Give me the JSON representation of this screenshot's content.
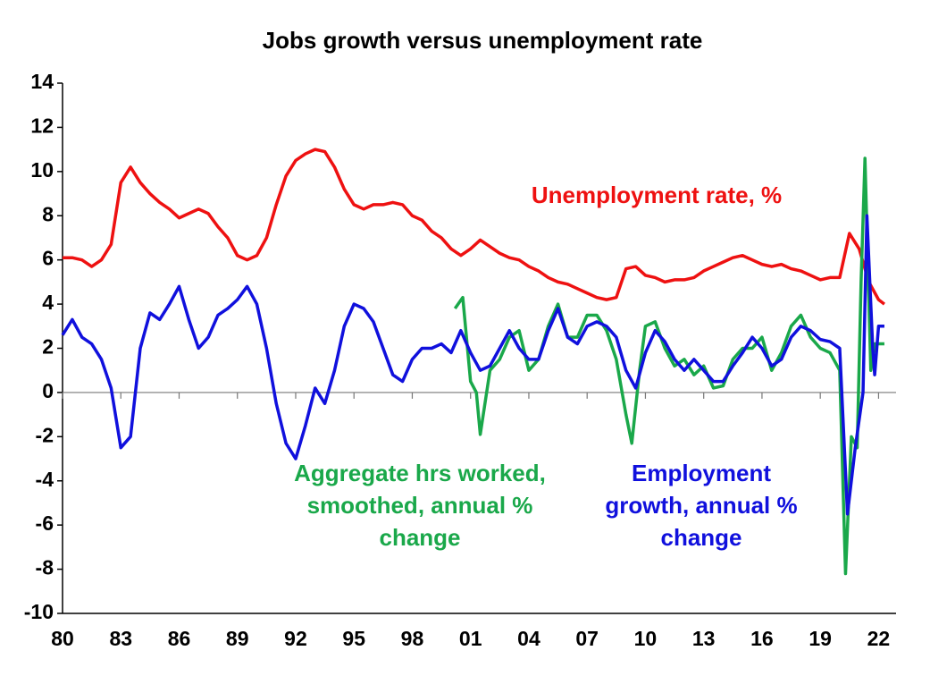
{
  "chart_data": {
    "type": "line",
    "title": "Jobs growth versus unemployment rate",
    "xlim": [
      1980,
      2022.9
    ],
    "ylim": [
      -10,
      14
    ],
    "yticks": [
      -10,
      -8,
      -6,
      -4,
      -2,
      0,
      2,
      4,
      6,
      8,
      10,
      12,
      14
    ],
    "xticks": [
      {
        "value": 1980,
        "label": "80"
      },
      {
        "value": 1983,
        "label": "83"
      },
      {
        "value": 1986,
        "label": "86"
      },
      {
        "value": 1989,
        "label": "89"
      },
      {
        "value": 1992,
        "label": "92"
      },
      {
        "value": 1995,
        "label": "95"
      },
      {
        "value": 1998,
        "label": "98"
      },
      {
        "value": 2001,
        "label": "01"
      },
      {
        "value": 2004,
        "label": "04"
      },
      {
        "value": 2007,
        "label": "07"
      },
      {
        "value": 2010,
        "label": "10"
      },
      {
        "value": 2013,
        "label": "13"
      },
      {
        "value": 2016,
        "label": "16"
      },
      {
        "value": 2019,
        "label": "19"
      },
      {
        "value": 2022,
        "label": "22"
      }
    ],
    "series": [
      {
        "name": "Unemployment rate, %",
        "color": "#ee1111",
        "x": [
          1980,
          1980.5,
          1981,
          1981.5,
          1982,
          1982.5,
          1983,
          1983.5,
          1984,
          1984.5,
          1985,
          1985.5,
          1986,
          1986.5,
          1987,
          1987.5,
          1988,
          1988.5,
          1989,
          1989.5,
          1990,
          1990.5,
          1991,
          1991.5,
          1992,
          1992.5,
          1993,
          1993.5,
          1994,
          1994.5,
          1995,
          1995.5,
          1996,
          1996.5,
          1997,
          1997.5,
          1998,
          1998.5,
          1999,
          1999.5,
          2000,
          2000.5,
          2001,
          2001.5,
          2002,
          2002.5,
          2003,
          2003.5,
          2004,
          2004.5,
          2005,
          2005.5,
          2006,
          2006.5,
          2007,
          2007.5,
          2008,
          2008.5,
          2009,
          2009.5,
          2010,
          2010.5,
          2011,
          2011.5,
          2012,
          2012.5,
          2013,
          2013.5,
          2014,
          2014.5,
          2015,
          2015.5,
          2016,
          2016.5,
          2017,
          2017.5,
          2018,
          2018.5,
          2019,
          2019.5,
          2020,
          2020.5,
          2021,
          2021.5,
          2022,
          2022.3
        ],
        "values": [
          6.1,
          6.1,
          6.0,
          5.7,
          6.0,
          6.7,
          9.5,
          10.2,
          9.5,
          9.0,
          8.6,
          8.3,
          7.9,
          8.1,
          8.3,
          8.1,
          7.5,
          7.0,
          6.2,
          6.0,
          6.2,
          7.0,
          8.5,
          9.8,
          10.5,
          10.8,
          11.0,
          10.9,
          10.2,
          9.2,
          8.5,
          8.3,
          8.5,
          8.5,
          8.6,
          8.5,
          8.0,
          7.8,
          7.3,
          7.0,
          6.5,
          6.2,
          6.5,
          6.9,
          6.6,
          6.3,
          6.1,
          6.0,
          5.7,
          5.5,
          5.2,
          5.0,
          4.9,
          4.7,
          4.5,
          4.3,
          4.2,
          4.3,
          5.6,
          5.7,
          5.3,
          5.2,
          5.0,
          5.1,
          5.1,
          5.2,
          5.5,
          5.7,
          5.9,
          6.1,
          6.2,
          6.0,
          5.8,
          5.7,
          5.8,
          5.6,
          5.5,
          5.3,
          5.1,
          5.2,
          5.2,
          7.2,
          6.5,
          5.0,
          4.2,
          4.0
        ]
      },
      {
        "name": "Aggregate hrs worked, smoothed, annual % change",
        "color": "#1aa84a",
        "x": [
          2000.2,
          2000.6,
          2001,
          2001.3,
          2001.5,
          2002,
          2002.5,
          2003,
          2003.5,
          2004,
          2004.5,
          2005,
          2005.5,
          2006,
          2006.5,
          2007,
          2007.5,
          2008,
          2008.5,
          2009,
          2009.3,
          2009.7,
          2010,
          2010.5,
          2011,
          2011.5,
          2012,
          2012.5,
          2013,
          2013.5,
          2014,
          2014.5,
          2015,
          2015.5,
          2016,
          2016.5,
          2017,
          2017.5,
          2018,
          2018.5,
          2019,
          2019.5,
          2020,
          2020.3,
          2020.6,
          2020.9,
          2021.1,
          2021.3,
          2021.6,
          2021.8,
          2022.3
        ],
        "values": [
          3.8,
          4.3,
          0.5,
          0.0,
          -1.9,
          1.0,
          1.5,
          2.5,
          2.8,
          1.0,
          1.5,
          3.0,
          4.0,
          2.5,
          2.5,
          3.5,
          3.5,
          2.8,
          1.5,
          -1.0,
          -2.3,
          1.0,
          3.0,
          3.2,
          2.0,
          1.2,
          1.5,
          0.8,
          1.2,
          0.2,
          0.3,
          1.5,
          2.0,
          2.0,
          2.5,
          1.0,
          1.8,
          3.0,
          3.5,
          2.5,
          2.0,
          1.8,
          1.0,
          -8.2,
          -2.0,
          -2.5,
          5.0,
          10.6,
          1.0,
          2.2,
          2.2
        ]
      },
      {
        "name": "Employment growth, annual % change",
        "color": "#1010dd",
        "x": [
          1980,
          1980.5,
          1981,
          1981.5,
          1982,
          1982.5,
          1983,
          1983.5,
          1984,
          1984.5,
          1985,
          1985.5,
          1986,
          1986.5,
          1987,
          1987.5,
          1988,
          1988.5,
          1989,
          1989.5,
          1990,
          1990.5,
          1991,
          1991.5,
          1992,
          1992.5,
          1993,
          1993.5,
          1994,
          1994.5,
          1995,
          1995.5,
          1996,
          1996.5,
          1997,
          1997.5,
          1998,
          1998.5,
          1999,
          1999.5,
          2000,
          2000.5,
          2001,
          2001.5,
          2002,
          2002.5,
          2003,
          2003.5,
          2004,
          2004.5,
          2005,
          2005.5,
          2006,
          2006.5,
          2007,
          2007.5,
          2008,
          2008.5,
          2009,
          2009.5,
          2010,
          2010.5,
          2011,
          2011.5,
          2012,
          2012.5,
          2013,
          2013.5,
          2014,
          2014.5,
          2015,
          2015.5,
          2016,
          2016.5,
          2017,
          2017.5,
          2018,
          2018.5,
          2019,
          2019.5,
          2020,
          2020.4,
          2020.8,
          2021.2,
          2021.4,
          2021.7,
          2021.8,
          2022,
          2022.3
        ],
        "values": [
          2.6,
          3.3,
          2.5,
          2.2,
          1.5,
          0.2,
          -2.5,
          -2.0,
          2.0,
          3.6,
          3.3,
          4.0,
          4.8,
          3.3,
          2.0,
          2.5,
          3.5,
          3.8,
          4.2,
          4.8,
          4.0,
          2.0,
          -0.5,
          -2.3,
          -3.0,
          -1.5,
          0.2,
          -0.5,
          1.0,
          3.0,
          4.0,
          3.8,
          3.2,
          2.0,
          0.8,
          0.5,
          1.5,
          2.0,
          2.0,
          2.2,
          1.8,
          2.8,
          1.8,
          1.0,
          1.2,
          2.0,
          2.8,
          2.0,
          1.5,
          1.5,
          2.8,
          3.8,
          2.5,
          2.2,
          3.0,
          3.2,
          3.0,
          2.5,
          1.0,
          0.2,
          1.8,
          2.8,
          2.3,
          1.5,
          1.0,
          1.5,
          1.0,
          0.5,
          0.5,
          1.2,
          1.8,
          2.5,
          2.0,
          1.2,
          1.5,
          2.5,
          3.0,
          2.8,
          2.4,
          2.3,
          2.0,
          -5.5,
          -2.5,
          0.0,
          8.0,
          2.0,
          0.8,
          3.0,
          3.0
        ]
      }
    ]
  }
}
